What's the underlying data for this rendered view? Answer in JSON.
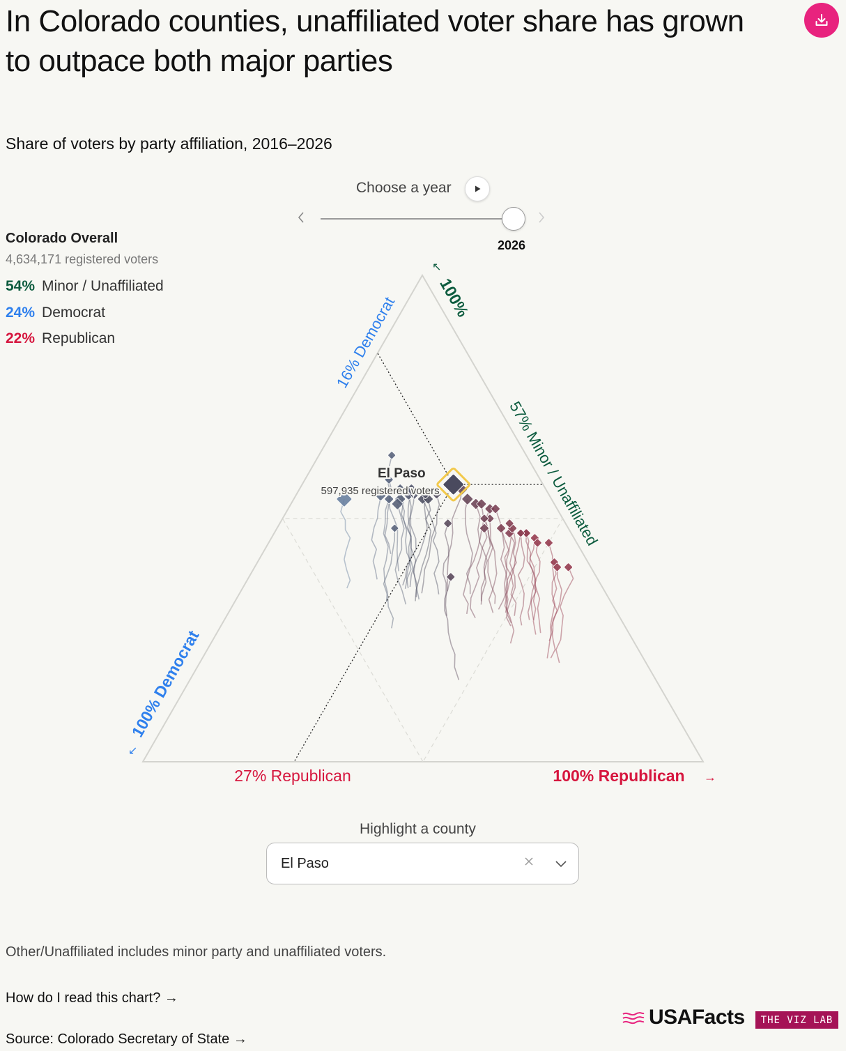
{
  "title": "In Colorado counties, unaffiliated voter share has grown to outpace both major parties",
  "subtitle": "Share of voters by party affiliation, 2016–2026",
  "controls": {
    "year_label": "Choose a year",
    "selected_year": "2026",
    "year_range": [
      2016,
      2026
    ],
    "county_label": "Highlight a county",
    "county_value": "El Paso"
  },
  "overall": {
    "title": "Colorado Overall",
    "voters": "4,634,171 registered voters",
    "rows": [
      {
        "pct": "54%",
        "label": "Minor / Unaffiliated",
        "color": "#0d5c3f"
      },
      {
        "pct": "24%",
        "label": "Democrat",
        "color": "#2f80ed"
      },
      {
        "pct": "22%",
        "label": "Republican",
        "color": "#d6163e"
      }
    ]
  },
  "colors": {
    "democrat": "#2f80ed",
    "republican": "#d6163e",
    "unaffiliated": "#0d5c3f",
    "highlight": "#f2c94c",
    "brand": "#e8237e",
    "vizlab": "#a51356"
  },
  "icons": {
    "download": "download-icon",
    "play": "play-icon",
    "prev": "chevron-left-icon",
    "next": "chevron-right-icon",
    "clear": "close-icon",
    "dropdown": "chevron-down-icon"
  },
  "chart_data": {
    "type": "scatter",
    "subtype": "ternary",
    "axes": {
      "democrat": {
        "label_max": "100% Democrat",
        "label_highlight": "16% Democrat"
      },
      "republican": {
        "label_max": "100% Republican",
        "label_highlight": "27% Republican"
      },
      "unaffiliated": {
        "label_max": "100%",
        "label_highlight": "57% Minor / Unaffiliated"
      }
    },
    "highlight": {
      "name": "El Paso",
      "voters": "597,935 registered voters",
      "democrat": 16,
      "republican": 27,
      "unaffiliated": 57
    },
    "counties": [
      {
        "d": 37,
        "r": 9,
        "u": 54,
        "s": 1.6
      },
      {
        "d": 30,
        "r": 15,
        "u": 55,
        "s": 1.3
      },
      {
        "d": 27,
        "r": 15,
        "u": 58,
        "s": 0.6
      },
      {
        "d": 27,
        "r": 19,
        "u": 54,
        "s": 0.9
      },
      {
        "d": 25,
        "r": 20,
        "u": 55,
        "s": 1.0
      },
      {
        "d": 26,
        "r": 18,
        "u": 56,
        "s": 0.9
      },
      {
        "d": 24,
        "r": 21,
        "u": 55,
        "s": 0.8
      },
      {
        "d": 23,
        "r": 23,
        "u": 54,
        "s": 0.8
      },
      {
        "d": 22,
        "r": 24,
        "u": 54,
        "s": 0.8
      },
      {
        "d": 24,
        "r": 20,
        "u": 56,
        "s": 0.9
      },
      {
        "d": 28,
        "r": 19,
        "u": 53,
        "s": 1.0
      },
      {
        "d": 29,
        "r": 17,
        "u": 54,
        "s": 0.7
      },
      {
        "d": 22,
        "r": 23,
        "u": 55,
        "s": 0.7
      },
      {
        "d": 20,
        "r": 25,
        "u": 55,
        "s": 0.7
      },
      {
        "d": 15,
        "r": 29,
        "u": 56,
        "s": 1.0
      },
      {
        "d": 15,
        "r": 31,
        "u": 54,
        "s": 1.0
      },
      {
        "d": 14,
        "r": 33,
        "u": 53,
        "s": 0.9
      },
      {
        "d": 13,
        "r": 34,
        "u": 53,
        "s": 0.8
      },
      {
        "d": 12,
        "r": 36,
        "u": 52,
        "s": 0.8
      },
      {
        "d": 11,
        "r": 37,
        "u": 52,
        "s": 0.7
      },
      {
        "d": 13,
        "r": 37,
        "u": 50,
        "s": 0.6
      },
      {
        "d": 15,
        "r": 37,
        "u": 48,
        "s": 0.7
      },
      {
        "d": 12,
        "r": 40,
        "u": 48,
        "s": 0.7
      },
      {
        "d": 11,
        "r": 42,
        "u": 47,
        "s": 0.7
      },
      {
        "d": 10,
        "r": 42,
        "u": 48,
        "s": 0.7
      },
      {
        "d": 10,
        "r": 41,
        "u": 49,
        "s": 0.6
      },
      {
        "d": 9,
        "r": 44,
        "u": 47,
        "s": 0.6
      },
      {
        "d": 8,
        "r": 45,
        "u": 47,
        "s": 0.6
      },
      {
        "d": 8,
        "r": 45,
        "u": 47,
        "s": 0.6
      },
      {
        "d": 7,
        "r": 47,
        "u": 46,
        "s": 0.6
      },
      {
        "d": 9,
        "r": 44,
        "u": 47,
        "s": 0.5
      },
      {
        "d": 7,
        "r": 48,
        "u": 45,
        "s": 0.6
      },
      {
        "d": 5,
        "r": 50,
        "u": 45,
        "s": 0.6
      },
      {
        "d": 6,
        "r": 53,
        "u": 41,
        "s": 0.6
      },
      {
        "d": 6,
        "r": 54,
        "u": 40,
        "s": 0.6
      },
      {
        "d": 4,
        "r": 56,
        "u": 40,
        "s": 0.6
      },
      {
        "d": 31,
        "r": 21,
        "u": 48,
        "s": 0.5
      },
      {
        "d": 21,
        "r": 30,
        "u": 49,
        "s": 0.6
      },
      {
        "d": 26,
        "r": 36,
        "u": 38,
        "s": 0.6
      },
      {
        "d": 24,
        "r": 13,
        "u": 63,
        "s": 0.5
      },
      {
        "d": 14,
        "r": 36,
        "u": 50,
        "s": 0.6
      }
    ]
  },
  "footer": {
    "note": "Other/Unaffiliated includes minor party and unaffiliated voters.",
    "read_link": "How do I read this chart? →",
    "source_link": "Source: Colorado Secretary of State →",
    "brand": "USAFacts",
    "vizlab": "THE VIZ LAB"
  }
}
